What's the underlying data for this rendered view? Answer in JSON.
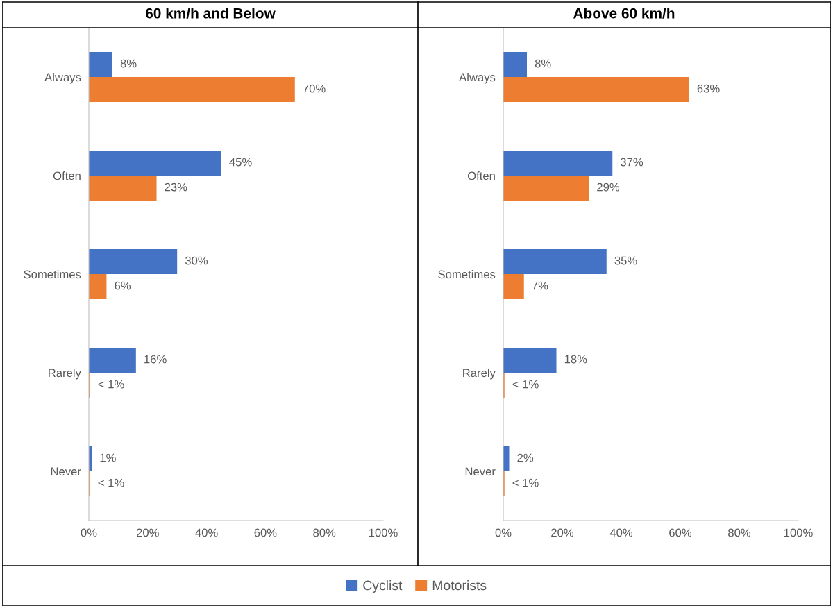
{
  "chart_data": [
    {
      "type": "bar",
      "orientation": "horizontal",
      "title": "60 km/h and Below",
      "categories": [
        "Always",
        "Often",
        "Sometimes",
        "Rarely",
        "Never"
      ],
      "legend": "bottom",
      "grid": false,
      "xlim": [
        0,
        100
      ],
      "xticks": [
        {
          "value": 0,
          "label": "0%"
        },
        {
          "value": 20,
          "label": "20%"
        },
        {
          "value": 40,
          "label": "40%"
        },
        {
          "value": 60,
          "label": "60%"
        },
        {
          "value": 80,
          "label": "80%"
        },
        {
          "value": 100,
          "label": "100%"
        }
      ],
      "series": [
        {
          "name": "Cyclist",
          "color": "#4472c4",
          "values": [
            8,
            45,
            30,
            16,
            1
          ],
          "value_labels": [
            "8%",
            "45%",
            "30%",
            "16%",
            "1%"
          ]
        },
        {
          "name": "Motorists",
          "color": "#ed7d31",
          "values": [
            70,
            23,
            6,
            0.4,
            0.4
          ],
          "value_labels": [
            "70%",
            "23%",
            "6%",
            "< 1%",
            "< 1%"
          ]
        }
      ]
    },
    {
      "type": "bar",
      "orientation": "horizontal",
      "title": "Above 60 km/h",
      "categories": [
        "Always",
        "Often",
        "Sometimes",
        "Rarely",
        "Never"
      ],
      "legend": "bottom",
      "grid": false,
      "xlim": [
        0,
        100
      ],
      "xticks": [
        {
          "value": 0,
          "label": "0%"
        },
        {
          "value": 20,
          "label": "20%"
        },
        {
          "value": 40,
          "label": "40%"
        },
        {
          "value": 60,
          "label": "60%"
        },
        {
          "value": 80,
          "label": "80%"
        },
        {
          "value": 100,
          "label": "100%"
        }
      ],
      "series": [
        {
          "name": "Cyclist",
          "color": "#4472c4",
          "values": [
            8,
            37,
            35,
            18,
            2
          ],
          "value_labels": [
            "8%",
            "37%",
            "35%",
            "18%",
            "2%"
          ]
        },
        {
          "name": "Motorists",
          "color": "#ed7d31",
          "values": [
            63,
            29,
            7,
            0.4,
            0.4
          ],
          "value_labels": [
            "63%",
            "29%",
            "7%",
            "< 1%",
            "< 1%"
          ]
        }
      ]
    }
  ]
}
